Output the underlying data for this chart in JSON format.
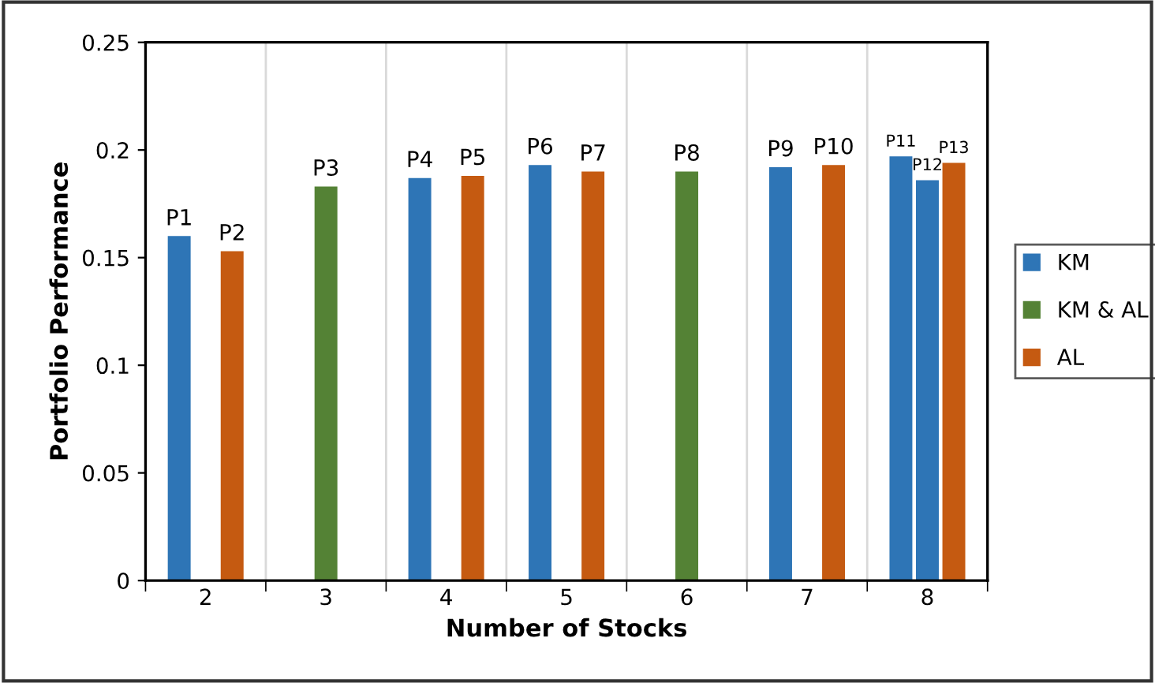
{
  "chart_data": {
    "type": "bar",
    "xlabel": "Number of Stocks",
    "ylabel": "Portfolio Performance",
    "categories": [
      "2",
      "3",
      "4",
      "5",
      "6",
      "7",
      "8"
    ],
    "series": [
      {
        "name": "KM",
        "color": "#2e75b6",
        "values": [
          0.16,
          null,
          0.187,
          0.193,
          null,
          0.192,
          0.197
        ],
        "value_labels": [
          "P1",
          null,
          "P4",
          "P6",
          null,
          "P9",
          "P11"
        ]
      },
      {
        "color": "#2e75b6",
        "values": [
          null,
          null,
          null,
          null,
          null,
          null,
          0.186
        ],
        "value_labels": [
          null,
          null,
          null,
          null,
          null,
          null,
          "P12"
        ]
      },
      {
        "name": "KM & AL",
        "color": "#548235",
        "values": [
          null,
          0.183,
          null,
          null,
          0.19,
          null,
          null
        ],
        "value_labels": [
          null,
          "P3",
          null,
          null,
          "P8",
          null,
          null
        ]
      },
      {
        "name": "AL",
        "color": "#c55a11",
        "values": [
          0.153,
          null,
          0.188,
          0.19,
          null,
          0.193,
          0.194
        ],
        "value_labels": [
          "P2",
          null,
          "P5",
          "P7",
          null,
          "P10",
          "P13"
        ]
      }
    ],
    "ylim": [
      0,
      0.25
    ],
    "yticks": [
      {
        "value": 0,
        "label": "0"
      },
      0.05,
      0.1,
      0.15,
      0.2,
      0.25
    ],
    "grid": "x",
    "legend": "right"
  }
}
